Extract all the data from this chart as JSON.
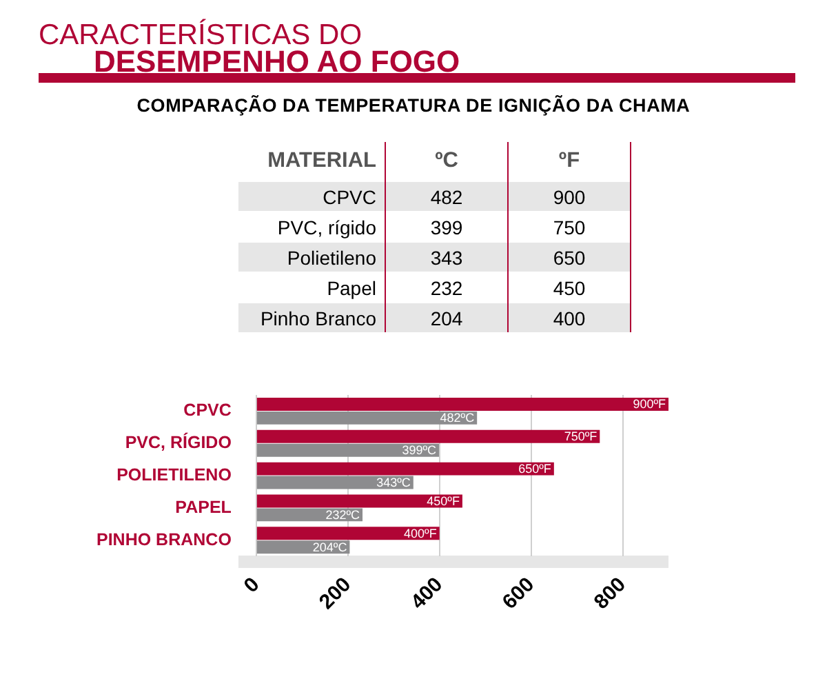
{
  "chart_data": [
    {
      "type": "other",
      "title": "CARACTERÍSTICAS DO\nDESEMPENHO AO FOGO",
      "subtitle": "COMPARAÇÃO DA TEMPERATURA DE IGNIÇÃO DA CHAMA",
      "ylabel": "MATERIAL",
      "categories": [
        "CPVC",
        "PVC, rígido",
        "Polietileno",
        "Papel",
        "Pinho Branco"
      ],
      "series": [
        {
          "name": "ºC",
          "values": [
            482,
            399,
            343,
            232,
            204
          ]
        },
        {
          "name": "ºF",
          "values": [
            900,
            750,
            650,
            450,
            400
          ]
        }
      ],
      "data_labels": true
    },
    {
      "type": "bar",
      "orientation": "horizontal",
      "categories": [
        "CPVC",
        "PVC, RÍGIDO",
        "POLIETILENO",
        "PAPEL",
        "PINHO BRANCO"
      ],
      "series": [
        {
          "color": "#b00535",
          "values": [
            900,
            750,
            650,
            450,
            400
          ],
          "value_labels": [
            "900ºF",
            "750ºF",
            "650ºF",
            "450ºF",
            "400ºF"
          ]
        },
        {
          "color": "#8c8c8e",
          "values": [
            482,
            399,
            343,
            232,
            204
          ],
          "value_labels": [
            "482ºC",
            "399ºC",
            "343ºC",
            "232ºC",
            "204ºC"
          ]
        }
      ],
      "xlim": [
        0,
        900
      ],
      "xticks": [
        0,
        200,
        400,
        600,
        800
      ],
      "grid": "x"
    }
  ]
}
